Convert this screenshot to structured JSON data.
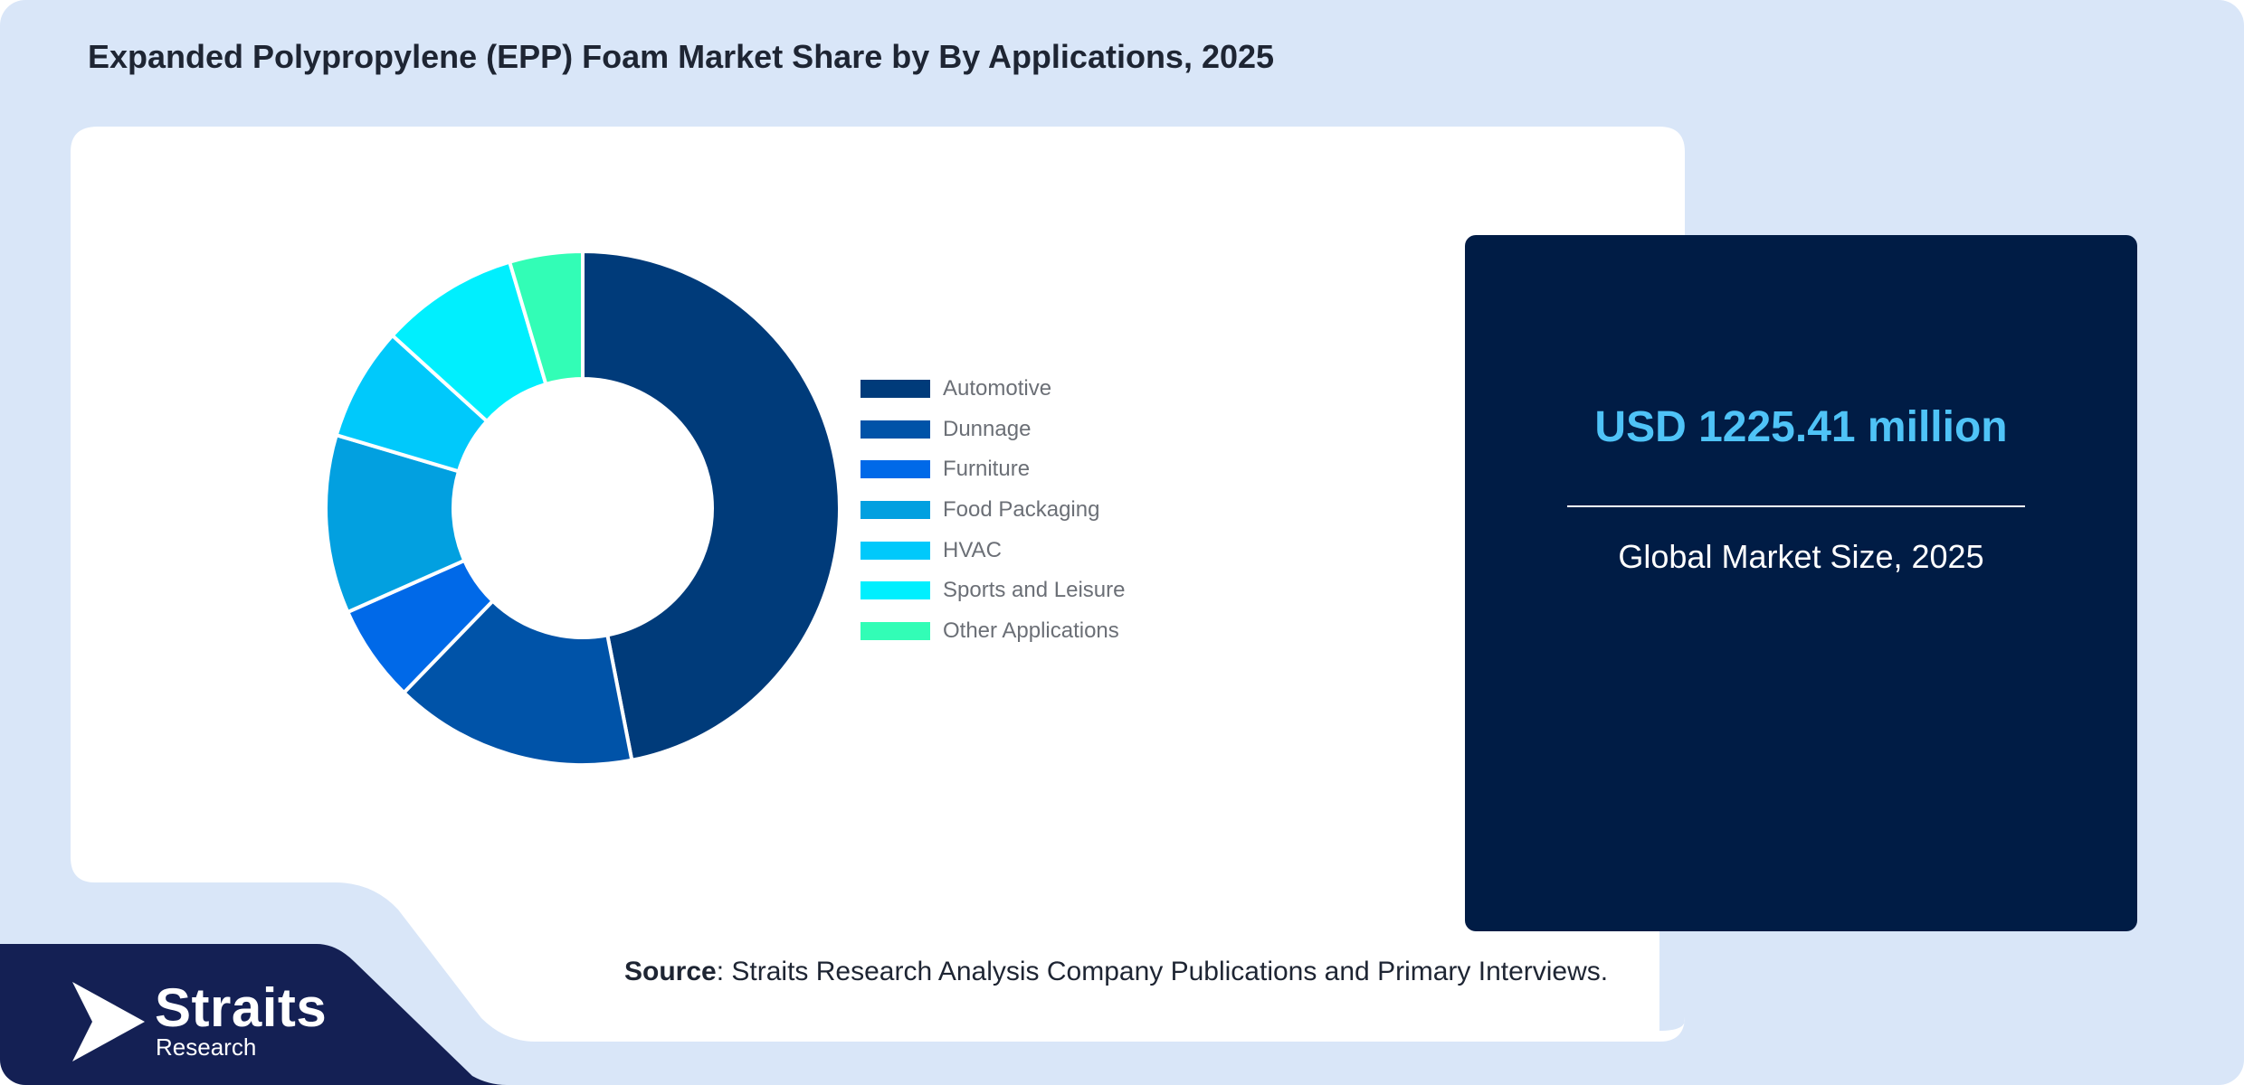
{
  "title": "Expanded Polypropylene (EPP) Foam Market Share by By Applications, 2025",
  "chart_data": {
    "type": "pie",
    "donut": true,
    "title": "Expanded Polypropylene (EPP) Foam Market Share by By Applications, 2025",
    "categories": [
      "Automotive",
      "Dunnage",
      "Furniture",
      "Food Packaging",
      "HVAC",
      "Sports and Leisure",
      "Other Applications"
    ],
    "values": [
      46,
      15,
      6,
      11,
      7,
      8.5,
      4.5
    ],
    "colors": [
      "#003b7a",
      "#0053a8",
      "#0069e8",
      "#02a0e0",
      "#00c9fb",
      "#00effe",
      "#32fdb6"
    ],
    "legend_position": "right"
  },
  "market": {
    "value": "USD 1225.41 million",
    "caption": "Global Market Size, 2025"
  },
  "source": {
    "label": "Source",
    "text": ": Straits Research Analysis Company Publications and Primary Interviews."
  },
  "brand": {
    "name": "Straits",
    "sub": "Research"
  }
}
